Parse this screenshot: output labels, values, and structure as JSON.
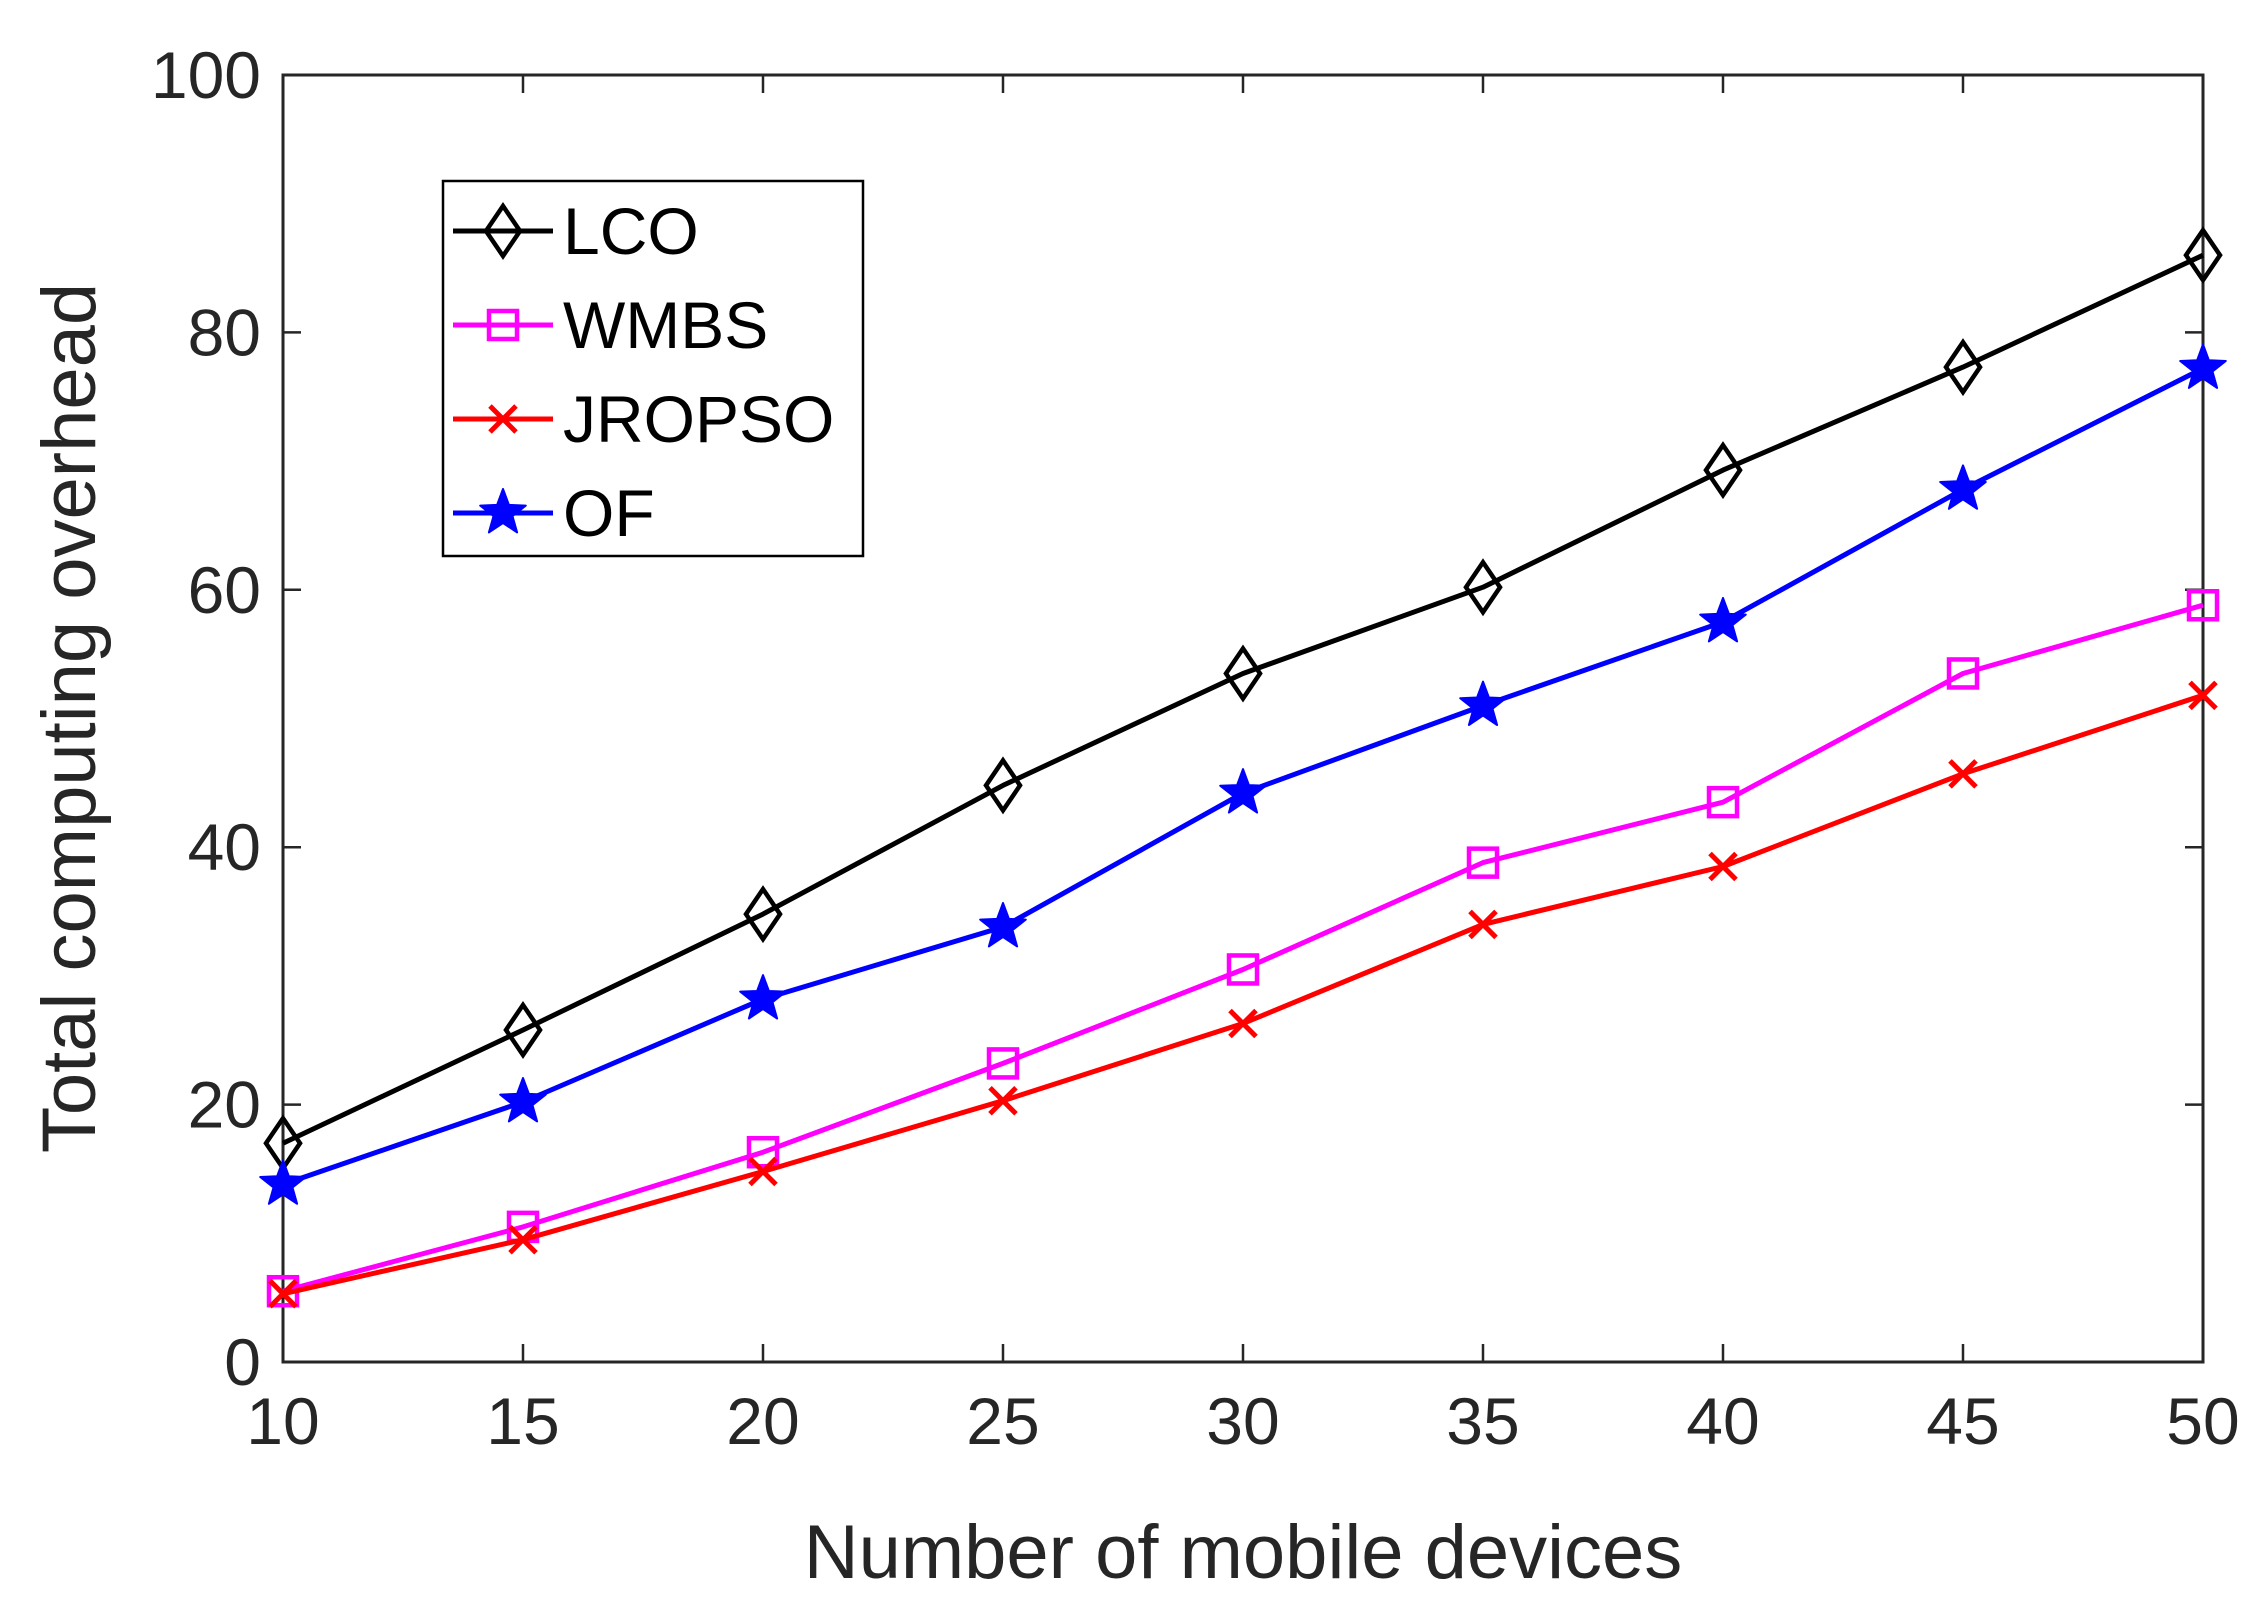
{
  "chart_data": {
    "type": "line",
    "title": "",
    "xlabel": "Number of mobile devices",
    "ylabel": "Total computing overhead",
    "x": [
      10,
      15,
      20,
      25,
      30,
      35,
      40,
      45,
      50
    ],
    "xlim": [
      10,
      50
    ],
    "ylim": [
      0,
      100
    ],
    "xticks": [
      "10",
      "15",
      "20",
      "25",
      "30",
      "35",
      "40",
      "45",
      "50"
    ],
    "yticks": [
      "0",
      "20",
      "40",
      "60",
      "80",
      "100"
    ],
    "grid": false,
    "legend_position": "top-left",
    "series": [
      {
        "name": "LCO",
        "color": "#000000",
        "marker": "diamond",
        "values": [
          17,
          25.8,
          34.8,
          44.8,
          53.5,
          60.2,
          69.3,
          77.3,
          86
        ]
      },
      {
        "name": "WMBS",
        "color": "#ff00ff",
        "marker": "square",
        "values": [
          5.5,
          10.5,
          16.3,
          23.2,
          30.5,
          38.8,
          43.5,
          53.5,
          58.8
        ]
      },
      {
        "name": "JROPSO",
        "color": "#ff0000",
        "marker": "x",
        "values": [
          5.3,
          9.5,
          14.8,
          20.3,
          26.3,
          34,
          38.5,
          45.7,
          51.8
        ]
      },
      {
        "name": "OF",
        "color": "#0000ff",
        "marker": "star",
        "values": [
          13.8,
          20.2,
          28.2,
          33.8,
          44.2,
          51,
          57.5,
          67.8,
          77.2
        ]
      }
    ]
  }
}
